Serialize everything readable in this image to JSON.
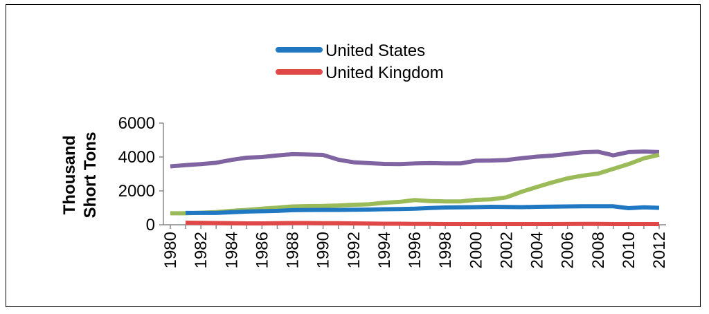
{
  "chart_data": {
    "type": "line",
    "title": "",
    "xlabel": "",
    "ylabel": [
      "Thousand",
      "Short Tons"
    ],
    "ylim": [
      0,
      6000
    ],
    "yticks": [
      0,
      2000,
      4000,
      6000
    ],
    "x": [
      1980,
      1981,
      1982,
      1983,
      1984,
      1985,
      1986,
      1987,
      1988,
      1989,
      1990,
      1991,
      1992,
      1993,
      1994,
      1995,
      1996,
      1997,
      1998,
      1999,
      2000,
      2001,
      2002,
      2003,
      2004,
      2005,
      2006,
      2007,
      2008,
      2009,
      2010,
      2011,
      2012
    ],
    "xticks": [
      "1980",
      "1982",
      "1984",
      "1986",
      "1988",
      "1990",
      "1992",
      "1994",
      "1996",
      "1998",
      "2000",
      "2002",
      "2004",
      "2006",
      "2008",
      "2010",
      "2012"
    ],
    "legend_position": "top-center",
    "series": [
      {
        "name": "",
        "color": "#8064A2",
        "values": [
          3450,
          3520,
          3580,
          3660,
          3830,
          3960,
          4000,
          4090,
          4170,
          4150,
          4120,
          3840,
          3690,
          3640,
          3590,
          3580,
          3620,
          3640,
          3620,
          3620,
          3780,
          3790,
          3820,
          3930,
          4020,
          4080,
          4180,
          4280,
          4310,
          4100,
          4290,
          4320,
          4290
        ]
      },
      {
        "name": "",
        "color": "#9BBB59",
        "values": [
          680,
          680,
          710,
          750,
          820,
          880,
          950,
          1010,
          1080,
          1100,
          1110,
          1140,
          1180,
          1210,
          1300,
          1350,
          1460,
          1400,
          1380,
          1380,
          1470,
          1500,
          1620,
          1950,
          2230,
          2500,
          2740,
          2900,
          3020,
          3300,
          3580,
          3920,
          4130
        ]
      },
      {
        "name": "United States",
        "color": "#1F78C1",
        "values": [
          null,
          700,
          700,
          700,
          740,
          780,
          800,
          820,
          860,
          870,
          880,
          880,
          890,
          900,
          920,
          930,
          950,
          990,
          1020,
          1030,
          1040,
          1060,
          1050,
          1040,
          1060,
          1070,
          1080,
          1090,
          1090,
          1090,
          980,
          1030,
          1000
        ]
      },
      {
        "name": "United Kingdom",
        "color": "#E04848",
        "values": [
          null,
          120,
          110,
          100,
          90,
          80,
          80,
          90,
          100,
          100,
          90,
          90,
          80,
          70,
          60,
          60,
          50,
          50,
          40,
          40,
          40,
          40,
          40,
          40,
          40,
          40,
          45,
          50,
          50,
          40,
          40,
          40,
          40
        ]
      }
    ]
  }
}
